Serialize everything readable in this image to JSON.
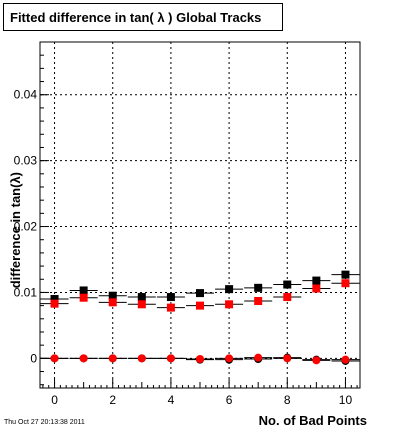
{
  "title": "Fitted difference in tan( λ )  Global Tracks",
  "footer": "Thu Oct 27 20:13:38 2011",
  "chart_data": {
    "type": "scatter",
    "xlabel": "No. of Bad Points",
    "ylabel": "difference in tan(λ)",
    "xlim": [
      -0.5,
      10.5
    ],
    "ylim": [
      -0.0045,
      0.048
    ],
    "xticks": [
      0,
      2,
      4,
      6,
      8,
      10
    ],
    "yticks": [
      0,
      0.01,
      0.02,
      0.03,
      0.04
    ],
    "ytick_labels": [
      "0",
      "0.01",
      "0.02",
      "0.03",
      "0.04"
    ],
    "grid": true,
    "series": [
      {
        "marker": "square",
        "color": "#000000",
        "x": [
          0,
          1,
          2,
          3,
          4,
          5,
          6,
          7,
          8,
          9,
          10
        ],
        "y": [
          0.009,
          0.0103,
          0.0095,
          0.0093,
          0.0093,
          0.0099,
          0.0105,
          0.0107,
          0.0112,
          0.0118,
          0.0127
        ]
      },
      {
        "marker": "square",
        "color": "#ff0000",
        "x": [
          0,
          1,
          2,
          3,
          4,
          5,
          6,
          7,
          8,
          9,
          10
        ],
        "y": [
          0.0083,
          0.0092,
          0.0085,
          0.0082,
          0.0077,
          0.008,
          0.0082,
          0.0087,
          0.0093,
          0.0106,
          0.0114
        ]
      },
      {
        "marker": "circle",
        "color": "#000000",
        "x": [
          0,
          1,
          2,
          3,
          4,
          5,
          6,
          7,
          8,
          9,
          10
        ],
        "y": [
          0,
          0,
          0,
          0,
          0,
          -0.0002,
          -0.0002,
          -0.0001,
          0.0001,
          -0.0002,
          -0.0004
        ]
      },
      {
        "marker": "circle",
        "color": "#ff0000",
        "x": [
          0,
          1,
          2,
          3,
          4,
          5,
          6,
          7,
          8,
          9,
          10
        ],
        "y": [
          0,
          0,
          0,
          0,
          0,
          -0.0001,
          0,
          0.0001,
          0,
          -0.0003,
          -0.0002
        ]
      }
    ]
  }
}
